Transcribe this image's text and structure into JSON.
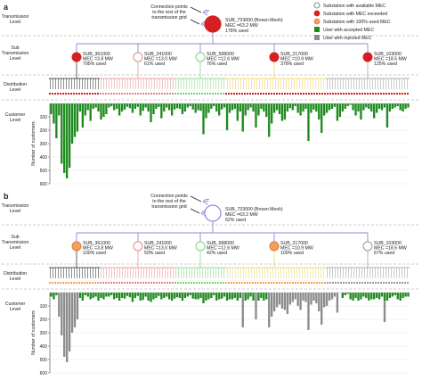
{
  "colors": {
    "available": "#ffffff",
    "exceeded": "#d62020",
    "full": "#f0a060",
    "accepted": "#1f8a1f",
    "rejected": "#8c8c8c",
    "line": "#8a8ad8",
    "wifi": "#5a5ad0",
    "groups": [
      "#222222",
      "#e08a8a",
      "#7fd07f",
      "#e8d25a",
      "#9a9a9a"
    ]
  },
  "labels": {
    "transmission": "Transmission Level",
    "sub": "Sub Transmission Level",
    "distribution": "Distribution Level",
    "customer": "Customer Level",
    "ylabel": "Number of customers",
    "connection": "Connection points to the rest of the transmission grid"
  },
  "legend": [
    {
      "label": "Substation with available MEC",
      "icon": "available"
    },
    {
      "label": "Substation with MEC exceeded",
      "icon": "exceeded"
    },
    {
      "label": "Substation with 100% used MEC",
      "icon": "full"
    },
    {
      "label": "User with accepted MEC",
      "icon": "accepted"
    },
    {
      "label": "User with rejected MEC",
      "icon": "rejected"
    }
  ],
  "panels": [
    {
      "label": "a",
      "main": {
        "name": "SUB_733000 (Brown Mesh)",
        "mec": "MEC =63.2 MW",
        "used": "178% used",
        "status": "exceeded"
      },
      "subs": [
        {
          "name": "SUB_361000",
          "mec": "MEC =3.8 MW",
          "used": "795% used",
          "status": "exceeded",
          "group": 0
        },
        {
          "name": "SUB_241000",
          "mec": "MEC =13.0 MW",
          "used": "61% used",
          "status": "available",
          "group": 1
        },
        {
          "name": "SUB_588000",
          "mec": "MEC =12.6 MW",
          "used": "76% used",
          "status": "available",
          "group": 2
        },
        {
          "name": "SUB_217000",
          "mec": "MEC =10.9 MW",
          "used": "378% used",
          "status": "exceeded",
          "group": 3
        },
        {
          "name": "SUB_103000",
          "mec": "MEC =18.5 MW",
          "used": "125% used",
          "status": "exceeded",
          "group": 4
        }
      ],
      "chart_data": {
        "type": "bar",
        "ylabel": "Number of customers",
        "yticks": [
          100,
          200,
          300,
          400,
          500,
          600
        ],
        "ylim": [
          0,
          600
        ],
        "series": [
          {
            "name": "User with accepted MEC",
            "values": [
              80,
              150,
              260,
              90,
              450,
              520,
              560,
              480,
              300,
              250,
              210,
              60,
              180,
              90,
              50,
              130,
              40,
              30,
              60,
              120,
              100,
              80,
              30,
              20,
              50,
              40,
              90,
              60,
              45,
              25,
              35,
              70,
              40,
              25,
              90,
              55,
              30,
              60,
              140,
              80,
              40,
              25,
              110,
              60,
              30,
              50,
              90,
              45,
              35,
              40,
              80,
              60,
              30,
              20,
              45,
              70,
              50,
              55,
              230,
              110,
              70,
              40,
              20,
              60,
              90,
              45,
              30,
              200,
              70,
              50,
              40,
              130,
              60,
              210,
              90,
              50,
              30,
              60,
              180,
              90,
              40,
              60,
              100,
              250,
              150,
              70,
              50,
              80,
              130,
              120,
              60,
              35,
              50,
              20,
              70,
              90,
              60,
              40,
              280,
              70,
              45,
              60,
              120,
              220,
              90,
              70,
              50,
              40,
              25,
              130,
              100,
              60,
              40,
              20,
              10,
              50,
              90,
              60,
              120,
              50,
              30,
              40,
              60,
              110,
              70,
              40,
              50,
              30,
              180,
              60,
              40,
              30,
              20,
              50,
              60,
              40,
              30
            ]
          }
        ]
      }
    },
    {
      "label": "b",
      "main": {
        "name": "SUB_733000 (Brown Mesh)",
        "mec": "MEC =63.2 MW",
        "used": "62% used",
        "status": "available"
      },
      "subs": [
        {
          "name": "SUB_361000",
          "mec": "MEC =3.8 MW",
          "used": "100% used",
          "status": "full",
          "group": 0
        },
        {
          "name": "SUB_241000",
          "mec": "MEC =13.0 MW",
          "used": "50% used",
          "status": "available",
          "group": 1
        },
        {
          "name": "SUB_588000",
          "mec": "MEC =12.6 MW",
          "used": "42% used",
          "status": "available",
          "group": 2
        },
        {
          "name": "SUB_217000",
          "mec": "MEC =10.9 MW",
          "used": "100% used",
          "status": "full",
          "group": 3
        },
        {
          "name": "SUB_103000",
          "mec": "MEC =18.5 MW",
          "used": "67% used",
          "status": "available",
          "group": 4
        }
      ],
      "chart_data": {
        "type": "bar",
        "ylabel": "Number of customers",
        "yticks": [
          100,
          200,
          300,
          400,
          500,
          600
        ],
        "ylim": [
          0,
          600
        ],
        "series": [
          {
            "name": "User with accepted MEC",
            "values": [
              30,
              50,
              20,
              0,
              0,
              0,
              0,
              0,
              0,
              0,
              0,
              40,
              60,
              20,
              30,
              50,
              40,
              30,
              60,
              40,
              50,
              30,
              30,
              20,
              50,
              40,
              60,
              40,
              45,
              25,
              35,
              70,
              40,
              25,
              60,
              55,
              30,
              60,
              70,
              50,
              40,
              25,
              50,
              40,
              30,
              50,
              60,
              45,
              35,
              40,
              60,
              40,
              30,
              20,
              45,
              50,
              50,
              40,
              80,
              60,
              50,
              40,
              20,
              60,
              50,
              45,
              30,
              60,
              50,
              50,
              40,
              60,
              40,
              0,
              60,
              50,
              30,
              60,
              0,
              60,
              40,
              60,
              50,
              0,
              0,
              0,
              0,
              0,
              0,
              0,
              0,
              0,
              0,
              0,
              0,
              0,
              0,
              0,
              0,
              0,
              0,
              0,
              0,
              0,
              0,
              0,
              0,
              0,
              0,
              0,
              0,
              40,
              20,
              10,
              50,
              60,
              40,
              60,
              50,
              30,
              40,
              60,
              50,
              50,
              40,
              50,
              30,
              60,
              60,
              40,
              30,
              20,
              50,
              60,
              40,
              30,
              30
            ]
          },
          {
            "name": "User with rejected MEC",
            "values": [
              0,
              0,
              0,
              180,
              320,
              480,
              520,
              440,
              300,
              260,
              200,
              0,
              0,
              0,
              0,
              0,
              0,
              0,
              0,
              0,
              0,
              0,
              0,
              0,
              0,
              0,
              0,
              0,
              0,
              0,
              0,
              0,
              0,
              0,
              0,
              0,
              0,
              0,
              0,
              0,
              0,
              0,
              0,
              0,
              0,
              0,
              0,
              0,
              0,
              0,
              0,
              0,
              0,
              0,
              0,
              0,
              0,
              0,
              0,
              0,
              0,
              0,
              0,
              0,
              0,
              0,
              0,
              0,
              0,
              0,
              0,
              0,
              0,
              260,
              0,
              0,
              0,
              0,
              200,
              0,
              0,
              0,
              0,
              260,
              180,
              140,
              110,
              90,
              120,
              130,
              160,
              90,
              70,
              50,
              100,
              130,
              60,
              70,
              280,
              90,
              60,
              80,
              140,
              240,
              110,
              100,
              60,
              50,
              30,
              150,
              0,
              0,
              0,
              0,
              0,
              0,
              0,
              0,
              0,
              0,
              0,
              0,
              0,
              0,
              0,
              0,
              0,
              160,
              0,
              0,
              0,
              0,
              0,
              0,
              0,
              0,
              0
            ]
          }
        ]
      }
    }
  ]
}
